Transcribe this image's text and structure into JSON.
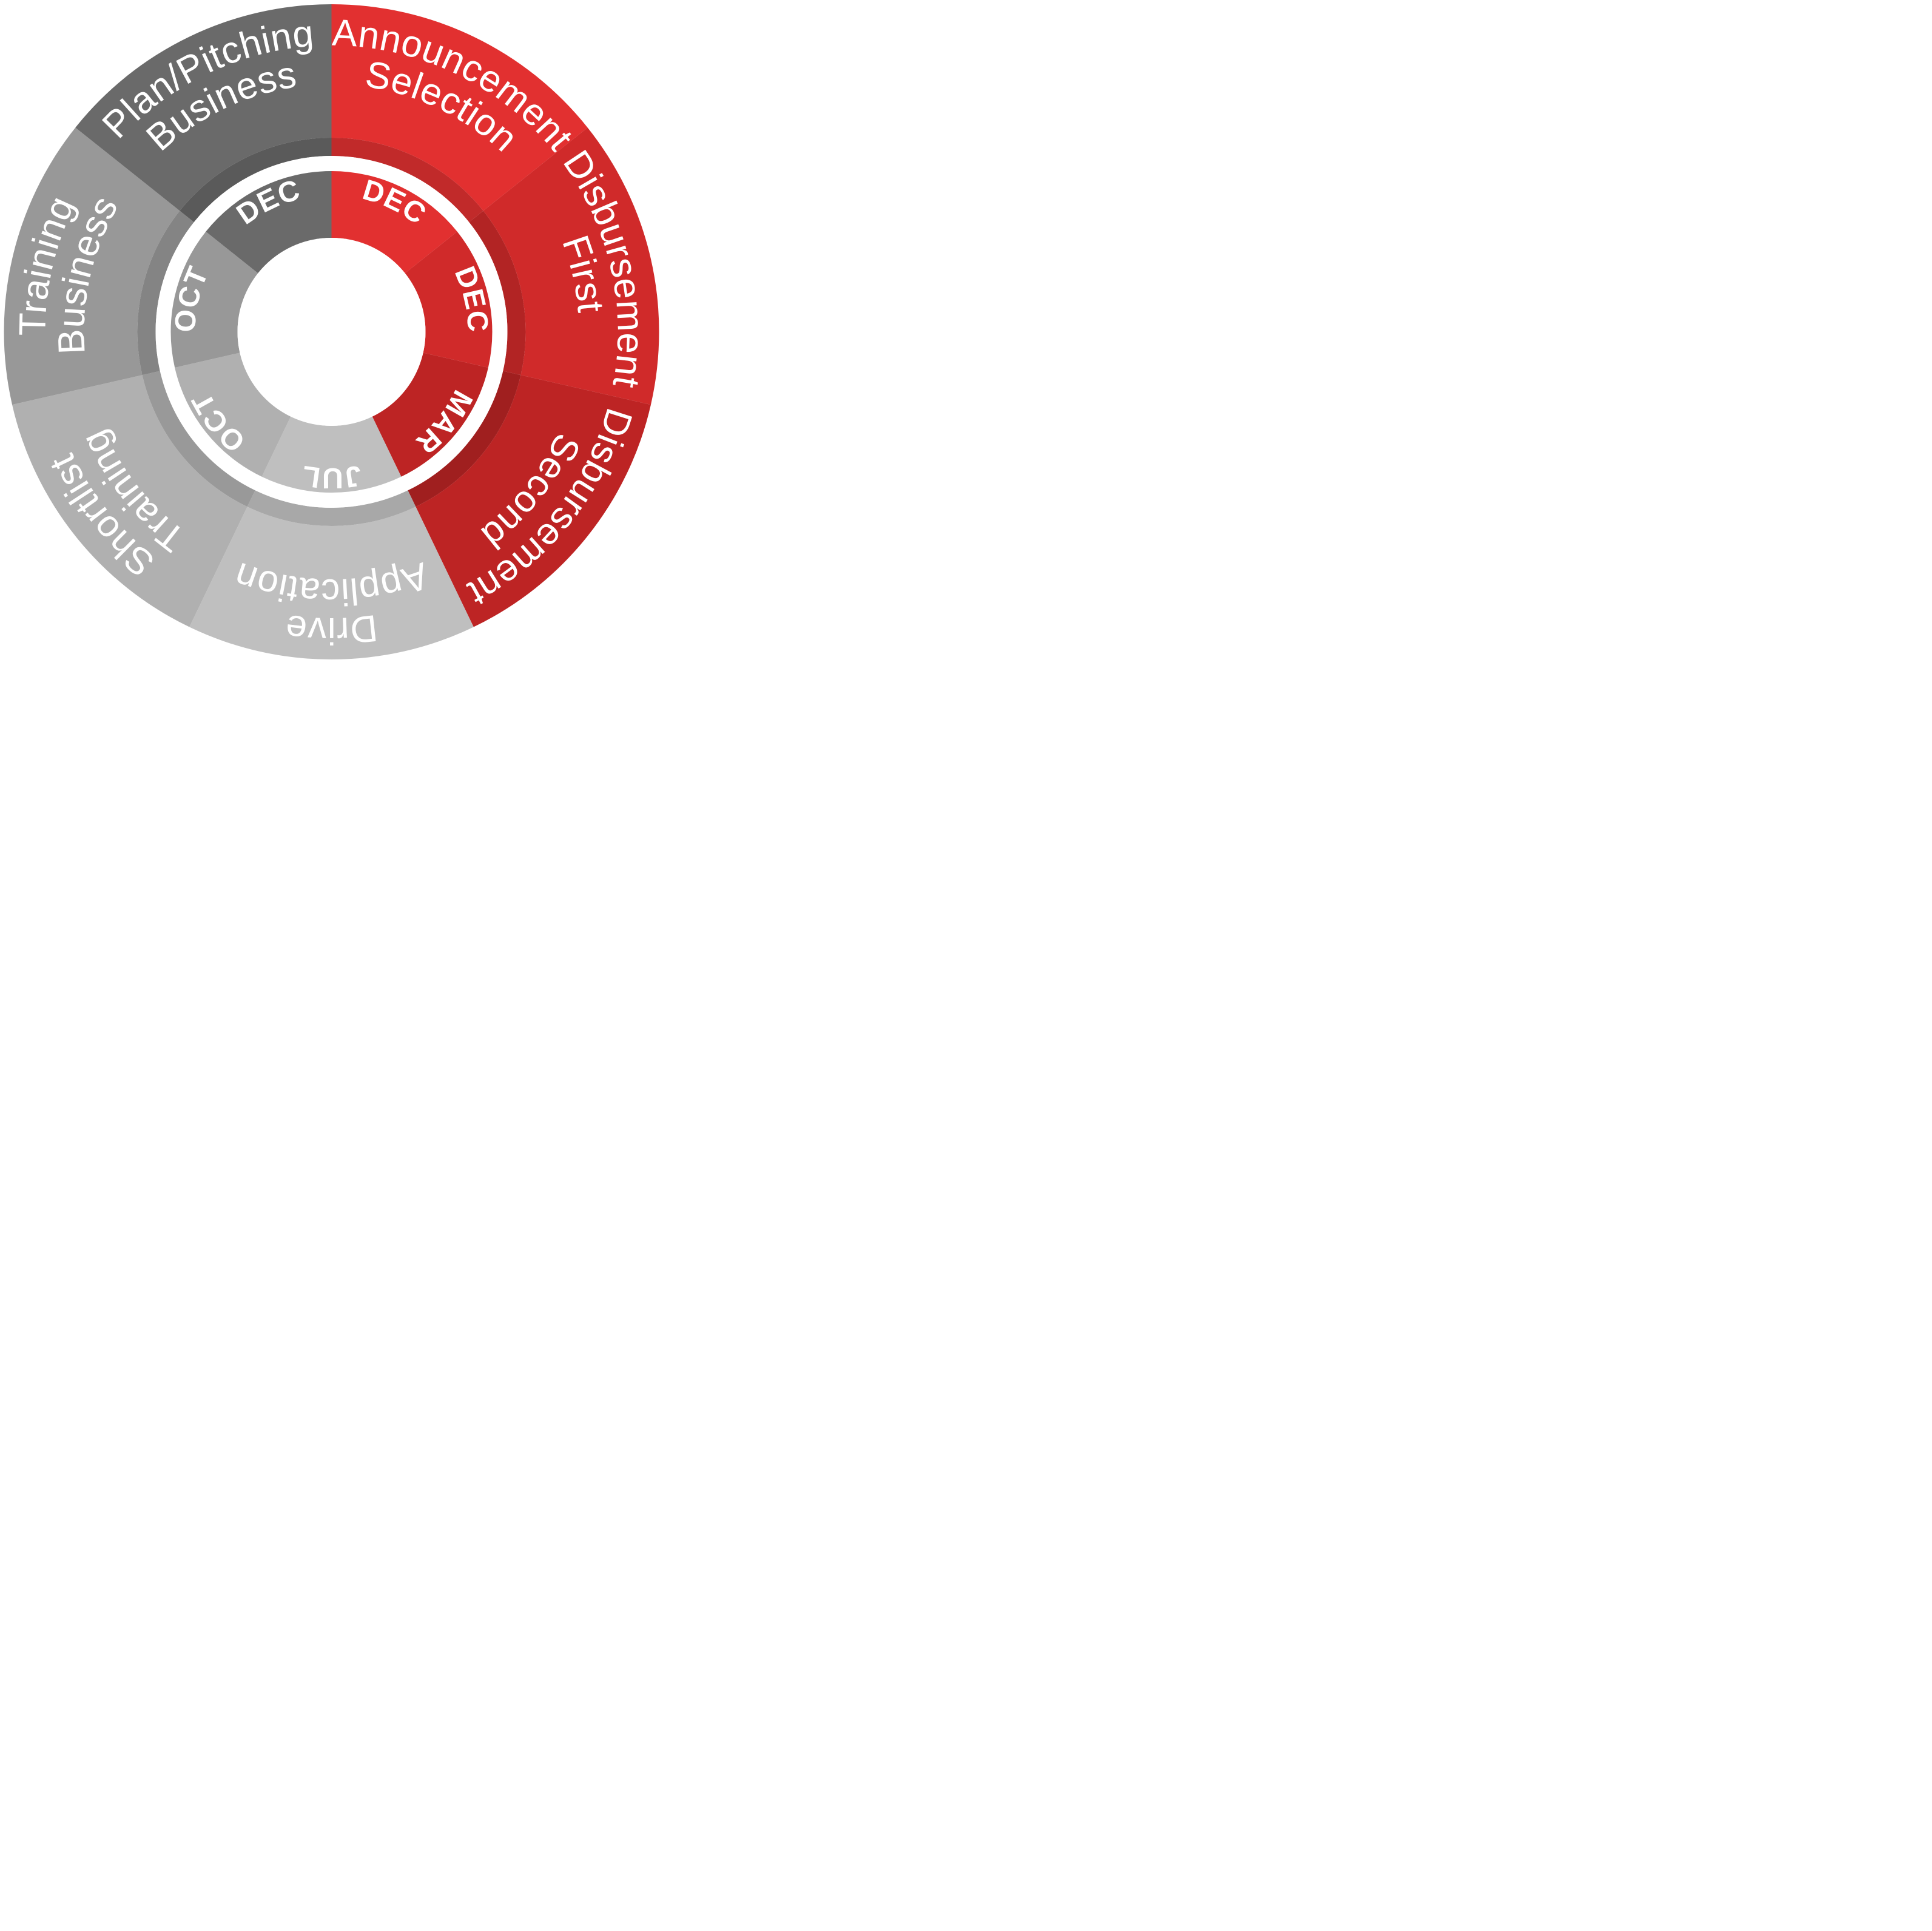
{
  "chart": {
    "type": "radial-segmented-donut",
    "background": "transparent",
    "center_hole_color": "#ffffff",
    "ring_gap_color": "#ffffff",
    "label_color": "#ffffff",
    "outer_label_fontsize": 62,
    "inner_label_fontsize": 48,
    "outer_label_weight": 300,
    "inner_label_weight": 700,
    "segment_count": 7,
    "inner_segment_count": 7,
    "segments": [
      {
        "start_deg": -90,
        "end_deg": -38.5714,
        "outer_color": "#e23030",
        "inner_color": "#e23030",
        "mid_ring_color": "#c12a2a",
        "label_lines": [
          "Selection",
          "Announcement"
        ],
        "month": "DEC"
      },
      {
        "start_deg": -38.5714,
        "end_deg": 12.8571,
        "outer_color": "#d02a2a",
        "inner_color": "#d02a2a",
        "mid_ring_color": "#b22424",
        "label_lines": [
          "First",
          "Disbursement"
        ],
        "month": "DEC"
      },
      {
        "start_deg": 12.8571,
        "end_deg": 64.2857,
        "outer_color": "#bd2424",
        "inner_color": "#bd2424",
        "mid_ring_color": "#a01f1f",
        "label_lines": [
          "Second",
          "Disbursement"
        ],
        "month": "MAR"
      },
      {
        "start_deg": 64.2857,
        "end_deg": 115.7143,
        "outer_color": "#bfbfbf",
        "inner_color": "#bfbfbf",
        "mid_ring_color": "#a8a8a8",
        "label_lines": [
          "Application",
          "Drive"
        ],
        "month": "JUL"
      },
      {
        "start_deg": 115.7143,
        "end_deg": 167.1429,
        "outer_color": "#b0b0b0",
        "inner_color": "#b0b0b0",
        "mid_ring_color": "#999999",
        "label_lines": [
          "Training",
          "Shortlist"
        ],
        "month": "OCT"
      },
      {
        "start_deg": 167.1429,
        "end_deg": 218.5714,
        "outer_color": "#989898",
        "inner_color": "#989898",
        "mid_ring_color": "#848484",
        "label_lines": [
          "Business",
          "Training"
        ],
        "month": "OCT"
      },
      {
        "start_deg": 218.5714,
        "end_deg": 270,
        "outer_color": "#6a6a6a",
        "inner_color": "#6a6a6a",
        "mid_ring_color": "#5a5a5a",
        "label_lines": [
          "Business",
          "Plan/Pitching"
        ],
        "month": "DEC"
      }
    ],
    "radii": {
      "outer_ring_outer": 540,
      "outer_ring_inner": 320,
      "mid_ring_outer": 320,
      "mid_ring_inner": 290,
      "gap_inner": 265,
      "inner_ring_outer": 265,
      "inner_ring_inner": 155,
      "outer_label_r1": 408,
      "outer_label_r2": 472,
      "inner_label_r": 225
    }
  }
}
